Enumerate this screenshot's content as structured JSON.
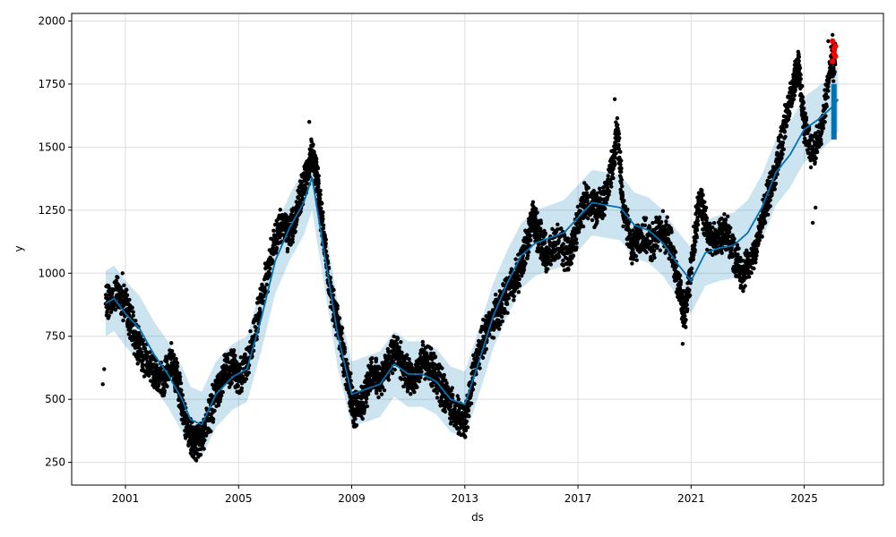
{
  "chart_data": {
    "type": "scatter",
    "title": "",
    "xlabel": "ds",
    "ylabel": "y",
    "xlim": [
      1999.1,
      2027.8
    ],
    "ylim": [
      160,
      2030
    ],
    "grid": true,
    "legend": "none",
    "x_ticks": [
      2001,
      2005,
      2009,
      2013,
      2017,
      2021,
      2025
    ],
    "x_tick_labels": [
      "2001",
      "2005",
      "2009",
      "2013",
      "2017",
      "2021",
      "2025"
    ],
    "y_ticks": [
      250,
      500,
      750,
      1000,
      1250,
      1500,
      1750,
      2000
    ],
    "y_tick_labels": [
      "250",
      "500",
      "750",
      "1000",
      "1250",
      "1500",
      "1750",
      "2000"
    ],
    "colors": {
      "observed": "#000000",
      "forecast": "#0072B2",
      "interval": "#0072B2",
      "highlight": "#ff0000",
      "grid": "#dddddd"
    },
    "observed_path": [
      [
        2000.3,
        880
      ],
      [
        2000.7,
        920
      ],
      [
        2001.0,
        880
      ],
      [
        2001.3,
        760
      ],
      [
        2001.6,
        680
      ],
      [
        2002.0,
        620
      ],
      [
        2002.3,
        570
      ],
      [
        2002.6,
        650
      ],
      [
        2002.8,
        600
      ],
      [
        2003.0,
        480
      ],
      [
        2003.3,
        340
      ],
      [
        2003.5,
        320
      ],
      [
        2003.8,
        380
      ],
      [
        2004.2,
        520
      ],
      [
        2004.5,
        600
      ],
      [
        2004.8,
        640
      ],
      [
        2005.0,
        580
      ],
      [
        2005.4,
        680
      ],
      [
        2005.8,
        880
      ],
      [
        2006.2,
        1100
      ],
      [
        2006.5,
        1200
      ],
      [
        2006.8,
        1150
      ],
      [
        2007.1,
        1260
      ],
      [
        2007.4,
        1380
      ],
      [
        2007.6,
        1480
      ],
      [
        2007.8,
        1350
      ],
      [
        2008.0,
        1150
      ],
      [
        2008.3,
        900
      ],
      [
        2008.6,
        750
      ],
      [
        2008.9,
        560
      ],
      [
        2009.1,
        450
      ],
      [
        2009.4,
        500
      ],
      [
        2009.7,
        600
      ],
      [
        2010.0,
        580
      ],
      [
        2010.3,
        650
      ],
      [
        2010.6,
        700
      ],
      [
        2010.9,
        600
      ],
      [
        2011.2,
        580
      ],
      [
        2011.5,
        650
      ],
      [
        2011.8,
        640
      ],
      [
        2012.1,
        560
      ],
      [
        2012.4,
        500
      ],
      [
        2012.7,
        440
      ],
      [
        2013.0,
        400
      ],
      [
        2013.3,
        600
      ],
      [
        2013.7,
        760
      ],
      [
        2014.0,
        820
      ],
      [
        2014.3,
        870
      ],
      [
        2014.6,
        950
      ],
      [
        2014.9,
        1000
      ],
      [
        2015.2,
        1120
      ],
      [
        2015.4,
        1220
      ],
      [
        2015.6,
        1150
      ],
      [
        2015.9,
        1070
      ],
      [
        2016.3,
        1120
      ],
      [
        2016.7,
        1060
      ],
      [
        2017.0,
        1200
      ],
      [
        2017.3,
        1300
      ],
      [
        2017.6,
        1250
      ],
      [
        2017.9,
        1280
      ],
      [
        2018.2,
        1420
      ],
      [
        2018.4,
        1560
      ],
      [
        2018.6,
        1260
      ],
      [
        2018.9,
        1100
      ],
      [
        2019.2,
        1150
      ],
      [
        2019.6,
        1120
      ],
      [
        2020.0,
        1180
      ],
      [
        2020.3,
        1100
      ],
      [
        2020.6,
        920
      ],
      [
        2020.8,
        840
      ],
      [
        2021.1,
        1120
      ],
      [
        2021.3,
        1300
      ],
      [
        2021.6,
        1160
      ],
      [
        2021.9,
        1120
      ],
      [
        2022.2,
        1180
      ],
      [
        2022.5,
        1080
      ],
      [
        2022.8,
        1000
      ],
      [
        2023.1,
        1040
      ],
      [
        2023.4,
        1150
      ],
      [
        2023.7,
        1300
      ],
      [
        2024.0,
        1420
      ],
      [
        2024.3,
        1580
      ],
      [
        2024.6,
        1750
      ],
      [
        2024.8,
        1820
      ],
      [
        2025.0,
        1580
      ],
      [
        2025.3,
        1480
      ],
      [
        2025.6,
        1560
      ],
      [
        2025.9,
        1800
      ],
      [
        2026.1,
        1860
      ]
    ],
    "observed_outliers": [
      [
        2000.2,
        560
      ],
      [
        2000.25,
        620
      ],
      [
        2000.9,
        1000
      ],
      [
        2007.5,
        1600
      ],
      [
        2018.3,
        1690
      ],
      [
        2020.7,
        720
      ],
      [
        2025.3,
        1200
      ],
      [
        2025.4,
        1260
      ],
      [
        2026.0,
        1945
      ],
      [
        2025.85,
        1920
      ]
    ],
    "trend": [
      [
        2000.3,
        880
      ],
      [
        2000.6,
        900
      ],
      [
        2001.0,
        840
      ],
      [
        2001.5,
        780
      ],
      [
        2002.0,
        680
      ],
      [
        2002.5,
        600
      ],
      [
        2003.0,
        500
      ],
      [
        2003.3,
        420
      ],
      [
        2003.7,
        400
      ],
      [
        2004.2,
        520
      ],
      [
        2004.8,
        590
      ],
      [
        2005.3,
        620
      ],
      [
        2005.8,
        820
      ],
      [
        2006.3,
        1050
      ],
      [
        2006.8,
        1180
      ],
      [
        2007.3,
        1280
      ],
      [
        2007.6,
        1380
      ],
      [
        2008.0,
        1100
      ],
      [
        2008.5,
        760
      ],
      [
        2009.0,
        520
      ],
      [
        2009.5,
        540
      ],
      [
        2010.0,
        560
      ],
      [
        2010.5,
        640
      ],
      [
        2011.0,
        600
      ],
      [
        2011.5,
        600
      ],
      [
        2012.0,
        570
      ],
      [
        2012.5,
        500
      ],
      [
        2013.0,
        480
      ],
      [
        2013.5,
        650
      ],
      [
        2014.0,
        830
      ],
      [
        2014.5,
        960
      ],
      [
        2015.0,
        1070
      ],
      [
        2015.5,
        1120
      ],
      [
        2016.0,
        1140
      ],
      [
        2016.5,
        1160
      ],
      [
        2017.0,
        1220
      ],
      [
        2017.5,
        1280
      ],
      [
        2018.0,
        1270
      ],
      [
        2018.5,
        1260
      ],
      [
        2019.0,
        1190
      ],
      [
        2019.5,
        1170
      ],
      [
        2020.0,
        1120
      ],
      [
        2020.5,
        1040
      ],
      [
        2021.0,
        970
      ],
      [
        2021.5,
        1080
      ],
      [
        2022.0,
        1100
      ],
      [
        2022.5,
        1110
      ],
      [
        2023.0,
        1160
      ],
      [
        2023.5,
        1260
      ],
      [
        2024.0,
        1400
      ],
      [
        2024.5,
        1470
      ],
      [
        2025.0,
        1570
      ],
      [
        2025.5,
        1610
      ],
      [
        2026.0,
        1660
      ],
      [
        2026.2,
        1690
      ]
    ],
    "interval_halfwidth": 130,
    "forecast_segment": {
      "x": 2026.05,
      "y_low": 1530,
      "y_high": 1750
    },
    "highlight_points": [
      [
        2026.0,
        1920
      ],
      [
        2026.05,
        1890
      ],
      [
        2026.1,
        1860
      ],
      [
        2026.0,
        1840
      ],
      [
        2026.1,
        1900
      ],
      [
        2026.05,
        1870
      ]
    ]
  }
}
